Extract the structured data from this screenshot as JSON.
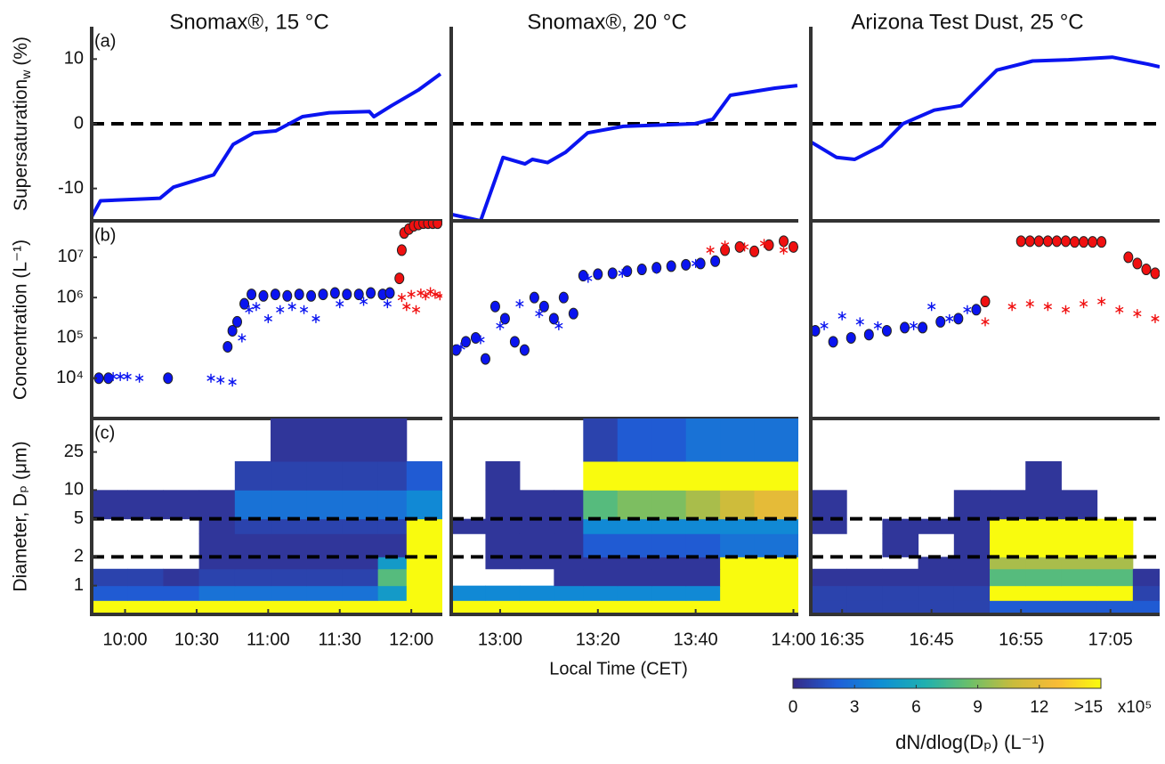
{
  "chart_data": [
    {
      "type": "line",
      "title": "Snomax®, 15 °C",
      "panel_label": "(a)",
      "ylabel": {
        "text": "Supersaturation",
        "sub": "w",
        "unit": "(%)"
      },
      "xlim": [
        586,
        733
      ],
      "ylim": [
        -15,
        15
      ],
      "yticks": [
        -10,
        0,
        10
      ],
      "hline": 0,
      "series": [
        {
          "color": "#0a14f0",
          "x": [
            586,
            589.7,
            614.7,
            620.3,
            637.1,
            645.3,
            653.9,
            663.2,
            674.4,
            685.6,
            702.4,
            704.3,
            711.7,
            722.9,
            732.2
          ],
          "values": [
            -14.4,
            -11.9,
            -11.5,
            -9.8,
            -7.9,
            -3.2,
            -1.4,
            -1.1,
            1.1,
            1.7,
            1.9,
            1.1,
            2.8,
            5.2,
            7.7
          ]
        }
      ]
    },
    {
      "type": "line",
      "title": "Snomax®, 20 °C",
      "xlim": [
        770,
        841
      ],
      "ylim": [
        -15,
        15
      ],
      "hline": 0,
      "series": [
        {
          "color": "#0a14f0",
          "x": [
            770,
            776,
            780.6,
            785.1,
            786.6,
            789.7,
            793.4,
            797.9,
            805.2,
            819.8,
            823.5,
            827.1,
            836.2,
            840.8
          ],
          "values": [
            -14,
            -15,
            -5.2,
            -6.2,
            -5.5,
            -6,
            -4.4,
            -1.4,
            -0.4,
            0,
            0.7,
            4.4,
            5.5,
            5.9
          ]
        }
      ]
    },
    {
      "type": "line",
      "title": "Arizona Test Dust, 25 °C",
      "xlim": [
        991.5,
        1030.5
      ],
      "ylim": [
        -15,
        15
      ],
      "hline": 0,
      "series": [
        {
          "color": "#0a14f0",
          "x": [
            991.5,
            994.4,
            996.4,
            999.4,
            1001.8,
            1005.3,
            1008.3,
            1012.3,
            1016.3,
            1020.3,
            1025.2,
            1029.2,
            1030.5
          ],
          "values": [
            -2.8,
            -5.2,
            -5.5,
            -3.4,
            0,
            2.1,
            2.8,
            8.3,
            9.7,
            9.9,
            10.3,
            9.2,
            8.8
          ]
        }
      ]
    },
    {
      "type": "scatter",
      "panel_label": "(b)",
      "ylabel": "Concentration (L⁻¹)",
      "yscale": "log",
      "xlim": [
        586,
        733
      ],
      "ylim": [
        1000,
        80000000
      ],
      "yticks": [
        {
          "value": 10000,
          "label": "10⁴"
        },
        {
          "value": 100000,
          "label": "10⁵"
        },
        {
          "value": 1000000,
          "label": "10⁶"
        },
        {
          "value": 10000000,
          "label": "10⁷"
        }
      ],
      "series": [
        {
          "marker": "circle",
          "color": "#0a14f0",
          "x": [
            589,
            593,
            618,
            643,
            645,
            647,
            650,
            653,
            658,
            663,
            668,
            673,
            678,
            683,
            688,
            693,
            698,
            703,
            708,
            711
          ],
          "values": [
            10000,
            10000,
            10000,
            60000,
            150000,
            250000,
            700000,
            1200000,
            1100000,
            1200000,
            1100000,
            1200000,
            1100000,
            1200000,
            1300000,
            1200000,
            1200000,
            1300000,
            1200000,
            1300000
          ]
        },
        {
          "marker": "circle",
          "color": "#f01010",
          "x": [
            715,
            716,
            717,
            719,
            721,
            723,
            725,
            727,
            729,
            731
          ],
          "values": [
            3000000,
            15000000,
            40000000,
            50000000,
            60000000,
            65000000,
            70000000,
            70000000,
            70000000,
            70000000
          ]
        },
        {
          "marker": "star",
          "color": "#0a14f0",
          "x": [
            595,
            598,
            601,
            606,
            636,
            640,
            645,
            649,
            652,
            655,
            660,
            665,
            670,
            675,
            680,
            690,
            700,
            710
          ],
          "values": [
            11000,
            11000,
            11000,
            10000,
            10000,
            9000,
            8000,
            100000,
            500000,
            600000,
            300000,
            500000,
            600000,
            500000,
            300000,
            700000,
            800000,
            700000
          ]
        },
        {
          "marker": "star",
          "color": "#f01010",
          "x": [
            716,
            718,
            720,
            722,
            724,
            726,
            728,
            730,
            732
          ],
          "values": [
            1000000,
            600000,
            1200000,
            500000,
            1300000,
            1100000,
            1400000,
            1200000,
            1100000
          ]
        }
      ]
    },
    {
      "type": "scatter",
      "yscale": "log",
      "xlim": [
        770,
        841
      ],
      "ylim": [
        1000,
        80000000
      ],
      "series": [
        {
          "marker": "circle",
          "color": "#0a14f0",
          "x": [
            771,
            773,
            775,
            777,
            779,
            781,
            783,
            785,
            787,
            789,
            791,
            793,
            795,
            797,
            800,
            803,
            806,
            809,
            812,
            815,
            818,
            821,
            824
          ],
          "values": [
            50000,
            80000,
            100000,
            30000,
            600000,
            300000,
            80000,
            50000,
            1000000,
            600000,
            300000,
            1000000,
            400000,
            3500000,
            3800000,
            4000000,
            4500000,
            5000000,
            5500000,
            6000000,
            6500000,
            7000000,
            8000000
          ]
        },
        {
          "marker": "circle",
          "color": "#f01010",
          "x": [
            826,
            829,
            832,
            835,
            838,
            840
          ],
          "values": [
            15000000,
            18000000,
            14000000,
            20000000,
            25000000,
            18000000
          ]
        },
        {
          "marker": "star",
          "color": "#0a14f0",
          "x": [
            772,
            776,
            780,
            784,
            788,
            792,
            798,
            805,
            812,
            820
          ],
          "values": [
            60000,
            90000,
            200000,
            700000,
            400000,
            200000,
            3000000,
            4000000,
            5000000,
            7000000
          ]
        },
        {
          "marker": "star",
          "color": "#f01010",
          "x": [
            823,
            826,
            830,
            834,
            838
          ],
          "values": [
            15000000,
            20000000,
            18000000,
            22000000,
            15000000
          ]
        }
      ]
    },
    {
      "type": "scatter",
      "yscale": "log",
      "xlim": [
        991.5,
        1030.5
      ],
      "ylim": [
        1000,
        80000000
      ],
      "series": [
        {
          "marker": "circle",
          "color": "#0a14f0",
          "x": [
            992,
            994,
            996,
            998,
            1000,
            1002,
            1004,
            1006,
            1008,
            1010
          ],
          "values": [
            150000,
            80000,
            100000,
            120000,
            150000,
            180000,
            180000,
            250000,
            300000,
            500000
          ]
        },
        {
          "marker": "circle",
          "color": "#f01010",
          "x": [
            1011,
            1015,
            1016,
            1017,
            1018,
            1019,
            1020,
            1021,
            1022,
            1023,
            1024,
            1027,
            1028,
            1029,
            1030
          ],
          "values": [
            800000,
            25000000,
            25000000,
            25000000,
            25000000,
            25000000,
            25000000,
            24000000,
            24000000,
            24000000,
            24000000,
            10000000,
            7000000,
            5000000,
            4000000
          ]
        },
        {
          "marker": "star",
          "color": "#0a14f0",
          "x": [
            993,
            995,
            997,
            999,
            1003,
            1005,
            1007,
            1009
          ],
          "values": [
            200000,
            350000,
            250000,
            200000,
            200000,
            600000,
            300000,
            500000
          ]
        },
        {
          "marker": "star",
          "color": "#f01010",
          "x": [
            1011,
            1014,
            1016,
            1018,
            1020,
            1022,
            1024,
            1026,
            1028,
            1030
          ],
          "values": [
            250000,
            600000,
            700000,
            600000,
            500000,
            700000,
            800000,
            500000,
            400000,
            300000
          ]
        }
      ]
    },
    {
      "type": "heatmap",
      "panel_label": "(c)",
      "ylabel": "Diameter, Dₚ (μm)",
      "yscale": "log",
      "xlim": [
        586,
        733
      ],
      "ylim": [
        0.5,
        56
      ],
      "yticks": [
        1,
        2,
        5,
        10,
        25
      ],
      "hlines": [
        2,
        5
      ],
      "xticks": [
        {
          "value": 600,
          "label": "10:00"
        },
        {
          "value": 630,
          "label": "10:30"
        },
        {
          "value": 660,
          "label": "11:00"
        },
        {
          "value": 690,
          "label": "11:30"
        },
        {
          "value": 720,
          "label": "12:00"
        }
      ],
      "xbins": [
        586,
        601,
        616,
        631,
        646,
        661,
        676,
        691,
        706,
        718,
        733
      ],
      "ybins": [
        0.5,
        0.7,
        1,
        1.5,
        2,
        3.5,
        5,
        10,
        20,
        56
      ],
      "z": [
        [
          20,
          20,
          20,
          20,
          20,
          20,
          20,
          20,
          20,
          20
        ],
        [
          2,
          2,
          2,
          3,
          3,
          3,
          3,
          3,
          5,
          20
        ],
        [
          1,
          1,
          0.5,
          1,
          1,
          1,
          1,
          1,
          8,
          20
        ],
        [
          null,
          null,
          null,
          0.5,
          0.5,
          0.5,
          0.5,
          0.5,
          5,
          20
        ],
        [
          null,
          null,
          null,
          0.5,
          0.5,
          0.5,
          0.5,
          0.5,
          0.5,
          20
        ],
        [
          null,
          null,
          null,
          0.5,
          1,
          1,
          1,
          1,
          1,
          20
        ],
        [
          0.5,
          0.5,
          0.5,
          0.5,
          3,
          3,
          3,
          3,
          3,
          4
        ],
        [
          null,
          null,
          null,
          null,
          1,
          1,
          1,
          1,
          1,
          2
        ],
        [
          null,
          null,
          null,
          null,
          null,
          0.5,
          0.5,
          0.5,
          0.5,
          null
        ]
      ]
    },
    {
      "type": "heatmap",
      "yscale": "log",
      "xlabel": "Local Time (CET)",
      "xlim": [
        770,
        841
      ],
      "ylim": [
        0.5,
        56
      ],
      "hlines": [
        2,
        5
      ],
      "xticks": [
        {
          "value": 780,
          "label": "13:00"
        },
        {
          "value": 800,
          "label": "13:20"
        },
        {
          "value": 820,
          "label": "13:40"
        },
        {
          "value": 840,
          "label": "14:00"
        }
      ],
      "xbins": [
        770,
        777,
        784,
        791,
        797,
        804,
        811,
        818,
        825,
        832,
        841
      ],
      "ybins": [
        0.5,
        0.7,
        1,
        1.5,
        2,
        3.5,
        5,
        10,
        20,
        56
      ],
      "z": [
        [
          20,
          20,
          20,
          20,
          20,
          20,
          20,
          20,
          20,
          20
        ],
        [
          4,
          4,
          4,
          4,
          4,
          4,
          4,
          4,
          20,
          20
        ],
        [
          null,
          null,
          null,
          0.5,
          0.5,
          0.5,
          0.5,
          0.5,
          20,
          20
        ],
        [
          null,
          0.5,
          0.5,
          0.5,
          0.5,
          0.5,
          0.5,
          0.5,
          20,
          20
        ],
        [
          null,
          0.5,
          0.5,
          0.5,
          2,
          2,
          2,
          2,
          3,
          3
        ],
        [
          0.5,
          0.5,
          0.5,
          0.5,
          4,
          4,
          4,
          4,
          4,
          4
        ],
        [
          null,
          0.5,
          0.5,
          0.5,
          8,
          9,
          9,
          10,
          11,
          12
        ],
        [
          null,
          0.5,
          null,
          null,
          20,
          20,
          20,
          20,
          20,
          20
        ],
        [
          null,
          null,
          null,
          null,
          1,
          2,
          2,
          3,
          3,
          3
        ]
      ]
    },
    {
      "type": "heatmap",
      "yscale": "log",
      "xlim": [
        991.5,
        1030.5
      ],
      "ylim": [
        0.5,
        56
      ],
      "hlines": [
        2,
        5
      ],
      "xticks": [
        {
          "value": 995,
          "label": "16:35"
        },
        {
          "value": 1005,
          "label": "16:45"
        },
        {
          "value": 1015,
          "label": "16:55"
        },
        {
          "value": 1025,
          "label": "17:05"
        }
      ],
      "xbins": [
        991.5,
        995.5,
        999.5,
        1003.5,
        1007.5,
        1011.5,
        1015.5,
        1019.5,
        1023.5,
        1027.5,
        1030.5
      ],
      "ybins": [
        0.5,
        0.7,
        1,
        1.5,
        2,
        3.5,
        5,
        10,
        20,
        56
      ],
      "z": [
        [
          1,
          1,
          1,
          1,
          1,
          2,
          2,
          2,
          2,
          2
        ],
        [
          1,
          1,
          1,
          1,
          1,
          20,
          20,
          20,
          20,
          1
        ],
        [
          0.5,
          0.5,
          0.5,
          0.5,
          0.5,
          8,
          8,
          8,
          8,
          0.5
        ],
        [
          null,
          null,
          null,
          0.5,
          0.5,
          10,
          10,
          10,
          10,
          null
        ],
        [
          null,
          null,
          0.5,
          null,
          0.5,
          20,
          20,
          20,
          20,
          null
        ],
        [
          0.5,
          null,
          0.5,
          0.5,
          0.5,
          20,
          20,
          20,
          20,
          null
        ],
        [
          0.5,
          null,
          null,
          null,
          0.5,
          0.5,
          0.5,
          0.5,
          null,
          null
        ],
        [
          null,
          null,
          null,
          null,
          null,
          null,
          0.5,
          null,
          null,
          null
        ],
        [
          null,
          null,
          null,
          null,
          null,
          null,
          null,
          null,
          null,
          null
        ]
      ]
    },
    {
      "type": "colorbar",
      "lim": [
        0,
        15
      ],
      "ticks": [
        0,
        3,
        6,
        9,
        12,
        {
          "value": 15,
          "label": ">15"
        }
      ],
      "multiplier": "x10⁵",
      "label": "dN/dlog(Dₚ) (L⁻¹)",
      "colormap": [
        "#352a87",
        "#1f5fd8",
        "#0f8fd4",
        "#1fb0b0",
        "#6abf6a",
        "#c8bc3c",
        "#f8bb36",
        "#f9fb0e"
      ]
    }
  ]
}
